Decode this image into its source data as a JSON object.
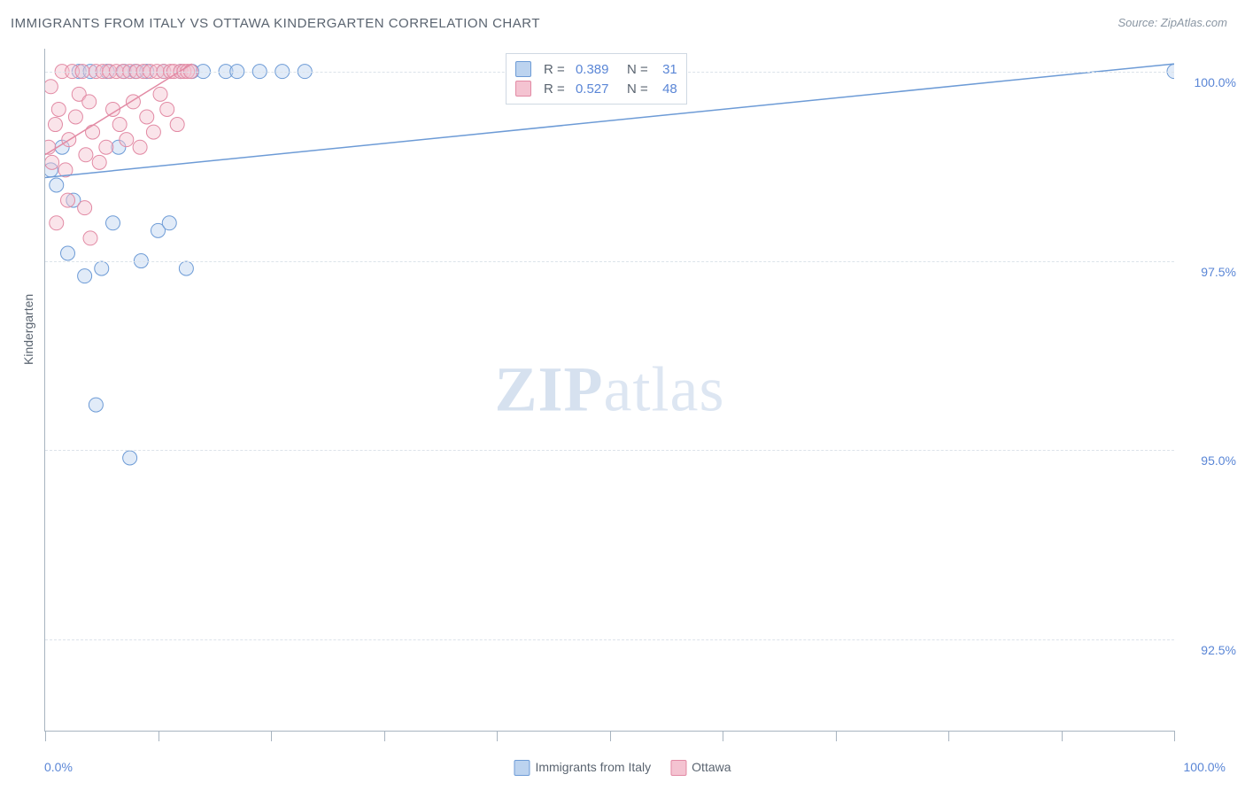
{
  "title": "IMMIGRANTS FROM ITALY VS OTTAWA KINDERGARTEN CORRELATION CHART",
  "source_label": "Source: ",
  "source_name": "ZipAtlas.com",
  "y_axis_label": "Kindergarten",
  "watermark_zip": "ZIP",
  "watermark_atlas": "atlas",
  "chart": {
    "type": "scatter",
    "xlim": [
      0,
      100
    ],
    "ylim": [
      91.3,
      100.3
    ],
    "xmin_label": "0.0%",
    "xmax_label": "100.0%",
    "x_ticks": [
      0,
      10,
      20,
      30,
      40,
      50,
      60,
      70,
      80,
      90,
      100
    ],
    "y_gridlines": [
      {
        "value": 100.0,
        "label": "100.0%"
      },
      {
        "value": 97.5,
        "label": "97.5%"
      },
      {
        "value": 95.0,
        "label": "95.0%"
      },
      {
        "value": 92.5,
        "label": "92.5%"
      }
    ],
    "background_color": "#ffffff",
    "grid_color": "#dce3ea",
    "axis_color": "#a8b4c0",
    "marker_radius": 8,
    "marker_opacity": 0.45,
    "line_width": 1.5,
    "series": [
      {
        "name": "Immigrants from Italy",
        "color": "#7ea9e0",
        "fill": "#bcd3ef",
        "stroke": "#6d9bd6",
        "R": "0.389",
        "N": "31",
        "line": {
          "x1": 0,
          "y1": 98.6,
          "x2": 100,
          "y2": 100.1
        },
        "points": [
          [
            0.5,
            98.7
          ],
          [
            1.0,
            98.5
          ],
          [
            1.5,
            99.0
          ],
          [
            2.0,
            97.6
          ],
          [
            2.5,
            98.3
          ],
          [
            3.0,
            100.0
          ],
          [
            3.5,
            97.3
          ],
          [
            4.0,
            100.0
          ],
          [
            4.5,
            95.6
          ],
          [
            5.0,
            97.4
          ],
          [
            5.5,
            100.0
          ],
          [
            6.0,
            98.0
          ],
          [
            6.5,
            99.0
          ],
          [
            7.0,
            100.0
          ],
          [
            7.5,
            94.9
          ],
          [
            8.0,
            100.0
          ],
          [
            8.5,
            97.5
          ],
          [
            9.0,
            100.0
          ],
          [
            10.0,
            97.9
          ],
          [
            10.5,
            100.0
          ],
          [
            11.0,
            98.0
          ],
          [
            12.0,
            100.0
          ],
          [
            12.5,
            97.4
          ],
          [
            13.0,
            100.0
          ],
          [
            14.0,
            100.0
          ],
          [
            16.0,
            100.0
          ],
          [
            17.0,
            100.0
          ],
          [
            19.0,
            100.0
          ],
          [
            21.0,
            100.0
          ],
          [
            23.0,
            100.0
          ],
          [
            100.0,
            100.0
          ]
        ]
      },
      {
        "name": "Ottawa",
        "color": "#e99bb1",
        "fill": "#f4c3d1",
        "stroke": "#e28aa4",
        "R": "0.527",
        "N": "48",
        "line": {
          "x1": 0,
          "y1": 98.9,
          "x2": 13,
          "y2": 100.1
        },
        "points": [
          [
            0.3,
            99.0
          ],
          [
            0.6,
            98.8
          ],
          [
            0.9,
            99.3
          ],
          [
            1.2,
            99.5
          ],
          [
            1.5,
            100.0
          ],
          [
            1.8,
            98.7
          ],
          [
            2.1,
            99.1
          ],
          [
            2.4,
            100.0
          ],
          [
            2.7,
            99.4
          ],
          [
            3.0,
            99.7
          ],
          [
            3.3,
            100.0
          ],
          [
            3.6,
            98.9
          ],
          [
            3.9,
            99.6
          ],
          [
            4.2,
            99.2
          ],
          [
            4.5,
            100.0
          ],
          [
            4.8,
            98.8
          ],
          [
            5.1,
            100.0
          ],
          [
            5.4,
            99.0
          ],
          [
            5.7,
            100.0
          ],
          [
            6.0,
            99.5
          ],
          [
            6.3,
            100.0
          ],
          [
            6.6,
            99.3
          ],
          [
            6.9,
            100.0
          ],
          [
            7.2,
            99.1
          ],
          [
            7.5,
            100.0
          ],
          [
            7.8,
            99.6
          ],
          [
            8.1,
            100.0
          ],
          [
            8.4,
            99.0
          ],
          [
            8.7,
            100.0
          ],
          [
            9.0,
            99.4
          ],
          [
            9.3,
            100.0
          ],
          [
            9.6,
            99.2
          ],
          [
            9.9,
            100.0
          ],
          [
            10.2,
            99.7
          ],
          [
            10.5,
            100.0
          ],
          [
            10.8,
            99.5
          ],
          [
            11.1,
            100.0
          ],
          [
            11.4,
            100.0
          ],
          [
            11.7,
            99.3
          ],
          [
            12.0,
            100.0
          ],
          [
            12.3,
            100.0
          ],
          [
            12.6,
            100.0
          ],
          [
            12.9,
            100.0
          ],
          [
            1.0,
            98.0
          ],
          [
            2.0,
            98.3
          ],
          [
            3.5,
            98.2
          ],
          [
            0.5,
            99.8
          ],
          [
            4.0,
            97.8
          ]
        ]
      }
    ]
  },
  "legend_box": {
    "rows": [
      {
        "swatch": 0,
        "r_label": "R = ",
        "r_value": "0.389",
        "n_label": "   N =  ",
        "n_value": "31"
      },
      {
        "swatch": 1,
        "r_label": "R = ",
        "r_value": "0.527",
        "n_label": "   N =  ",
        "n_value": "48"
      }
    ]
  },
  "bottom_legend": [
    {
      "swatch": 0,
      "label": "Immigrants from Italy"
    },
    {
      "swatch": 1,
      "label": "Ottawa"
    }
  ]
}
